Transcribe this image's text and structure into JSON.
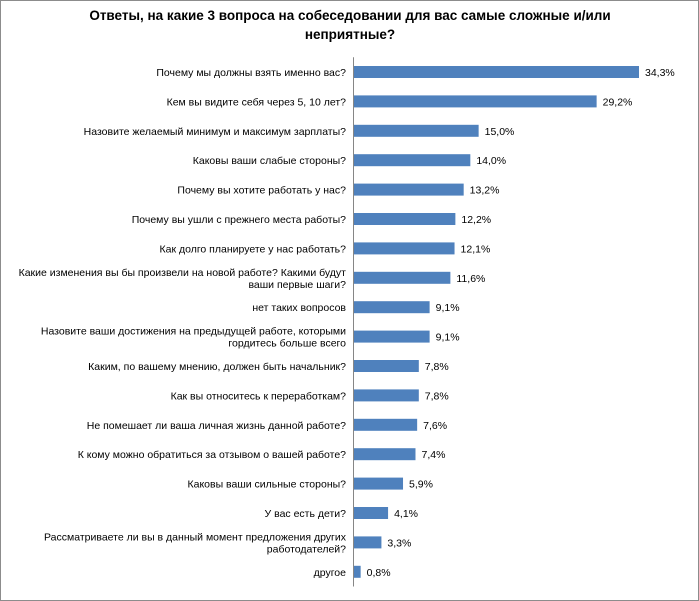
{
  "chart_data": {
    "type": "bar",
    "orientation": "horizontal",
    "title": "Ответы, на какие 3 вопроса на собеседовании для вас самые сложные и/или неприятные?",
    "categories": [
      "Почему мы должны взять именно вас?",
      "Кем вы видите себя через 5, 10 лет?",
      "Назовите желаемый минимум и максимум зарплаты?",
      "Каковы ваши слабые стороны?",
      "Почему вы хотите работать у нас?",
      "Почему вы ушли с прежнего места работы?",
      "Как долго планируете у нас работать?",
      "Какие изменения вы бы произвели на новой работе? Какими будут ваши первые шаги?",
      "нет таких вопросов",
      "Назовите ваши достижения на предыдущей работе, которыми гордитесь больше всего",
      "Каким, по вашему мнению, должен быть начальник?",
      "Как вы относитесь к переработкам?",
      "Не помешает ли ваша личная жизнь данной работе?",
      "К кому можно обратиться за отзывом о вашей работе?",
      "Каковы ваши сильные стороны?",
      "У вас есть дети?",
      "Рассматриваете ли вы в данный момент предложения других работодателей?",
      "другое"
    ],
    "category_lines": [
      [
        "Почему мы должны взять именно вас?"
      ],
      [
        "Кем вы видите себя через 5, 10 лет?"
      ],
      [
        "Назовите желаемый минимум и максимум зарплаты?"
      ],
      [
        "Каковы ваши слабые стороны?"
      ],
      [
        "Почему вы хотите работать у нас?"
      ],
      [
        "Почему вы ушли с прежнего места работы?"
      ],
      [
        "Как долго планируете у нас работать?"
      ],
      [
        "Какие изменения вы бы произвели на новой работе? Какими будут",
        "ваши первые шаги?"
      ],
      [
        "нет таких вопросов"
      ],
      [
        "Назовите ваши достижения на предыдущей работе, которыми",
        "гордитесь больше всего"
      ],
      [
        "Каким, по вашему мнению, должен быть начальник?"
      ],
      [
        "Как вы относитесь к переработкам?"
      ],
      [
        "Не помешает ли ваша личная жизнь данной работе?"
      ],
      [
        "К кому можно обратиться за отзывом о вашей работе?"
      ],
      [
        "Каковы ваши сильные стороны?"
      ],
      [
        "У вас есть дети?"
      ],
      [
        "Рассматриваете ли вы в данный момент предложения других",
        "работодателей?"
      ],
      [
        "другое"
      ]
    ],
    "values": [
      34.3,
      29.2,
      15.0,
      14.0,
      13.2,
      12.2,
      12.1,
      11.6,
      9.1,
      9.1,
      7.8,
      7.8,
      7.6,
      7.4,
      5.9,
      4.1,
      3.3,
      0.8
    ],
    "value_labels": [
      "34,3%",
      "29,2%",
      "15,0%",
      "14,0%",
      "13,2%",
      "12,2%",
      "12,1%",
      "11,6%",
      "9,1%",
      "9,1%",
      "7,8%",
      "7,8%",
      "7,6%",
      "7,4%",
      "5,9%",
      "4,1%",
      "3,3%",
      "0,8%"
    ],
    "xlim": [
      0,
      34.3
    ],
    "bar_color": "#4f81bd",
    "grid": false,
    "legend": "none"
  }
}
